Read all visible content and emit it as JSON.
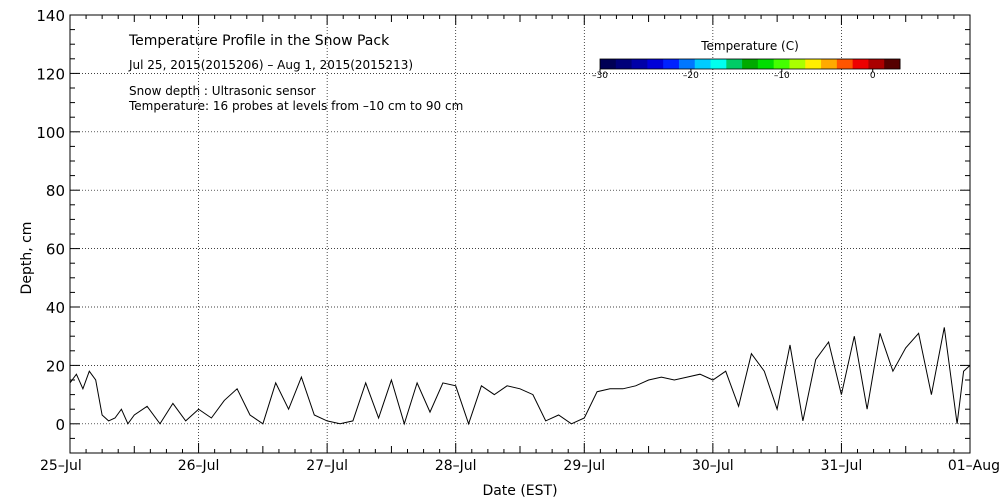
{
  "chart_data": {
    "type": "line",
    "title": "Temperature Profile in the Snow Pack",
    "subtitle": "Jul 25, 2015(2015206) – Aug  1, 2015(2015213)",
    "notes": [
      "Snow depth : Ultrasonic sensor",
      "Temperature: 16 probes at levels from –10 cm to 90 cm"
    ],
    "xlabel": "Date (EST)",
    "ylabel": "Depth, cm",
    "xlim": [
      0,
      7
    ],
    "ylim": [
      -10,
      140
    ],
    "grid": true,
    "x_ticks": [
      {
        "value": 0,
        "label": "25–Jul"
      },
      {
        "value": 1,
        "label": "26–Jul"
      },
      {
        "value": 2,
        "label": "27–Jul"
      },
      {
        "value": 3,
        "label": "28–Jul"
      },
      {
        "value": 4,
        "label": "29–Jul"
      },
      {
        "value": 5,
        "label": "30–Jul"
      },
      {
        "value": 6,
        "label": "31–Jul"
      },
      {
        "value": 7,
        "label": "01–Aug"
      }
    ],
    "y_ticks": [
      {
        "value": 0,
        "label": "0"
      },
      {
        "value": 20,
        "label": "20"
      },
      {
        "value": 40,
        "label": "40"
      },
      {
        "value": 60,
        "label": "60"
      },
      {
        "value": 80,
        "label": "80"
      },
      {
        "value": 100,
        "label": "100"
      },
      {
        "value": 120,
        "label": "120"
      },
      {
        "value": 140,
        "label": "140"
      }
    ],
    "colorbar": {
      "title": "Temperature (C)",
      "range": [
        -30,
        3
      ],
      "tick_values": [
        -30,
        -20,
        -10,
        0
      ],
      "tick_labels": [
        "–30",
        "–20",
        "–10",
        "0"
      ],
      "colors": [
        "#000055",
        "#00007a",
        "#0000a8",
        "#0000d8",
        "#0022ff",
        "#0077ff",
        "#00ccff",
        "#00ffee",
        "#00cc66",
        "#00aa00",
        "#00dd00",
        "#44ff00",
        "#aaff00",
        "#ffee00",
        "#ffaa00",
        "#ff5500",
        "#ee0000",
        "#aa0000",
        "#550000"
      ]
    },
    "series": [
      {
        "name": "Snow depth",
        "x": [
          0.0,
          0.05,
          0.1,
          0.15,
          0.2,
          0.25,
          0.3,
          0.35,
          0.4,
          0.45,
          0.5,
          0.6,
          0.7,
          0.8,
          0.9,
          1.0,
          1.1,
          1.2,
          1.3,
          1.4,
          1.5,
          1.6,
          1.7,
          1.8,
          1.9,
          2.0,
          2.1,
          2.2,
          2.3,
          2.4,
          2.5,
          2.6,
          2.7,
          2.8,
          2.9,
          3.0,
          3.1,
          3.2,
          3.3,
          3.4,
          3.5,
          3.6,
          3.7,
          3.8,
          3.9,
          4.0,
          4.1,
          4.2,
          4.3,
          4.4,
          4.5,
          4.6,
          4.7,
          4.8,
          4.9,
          5.0,
          5.1,
          5.2,
          5.3,
          5.4,
          5.5,
          5.6,
          5.7,
          5.8,
          5.9,
          6.0,
          6.1,
          6.2,
          6.3,
          6.4,
          6.5,
          6.6,
          6.7,
          6.8,
          6.9,
          6.95,
          7.0
        ],
        "values": [
          14,
          17,
          12,
          18,
          15,
          3,
          1,
          2,
          5,
          0,
          3,
          6,
          0,
          7,
          1,
          5,
          2,
          8,
          12,
          3,
          0,
          14,
          5,
          16,
          3,
          1,
          0,
          1,
          14,
          2,
          15,
          0,
          14,
          4,
          14,
          13,
          0,
          13,
          10,
          13,
          12,
          10,
          1,
          3,
          0,
          2,
          11,
          12,
          12,
          13,
          15,
          16,
          15,
          16,
          17,
          15,
          18,
          6,
          24,
          18,
          5,
          27,
          1,
          22,
          28,
          10,
          30,
          5,
          31,
          18,
          26,
          31,
          10,
          33,
          0,
          18,
          20
        ]
      }
    ]
  }
}
